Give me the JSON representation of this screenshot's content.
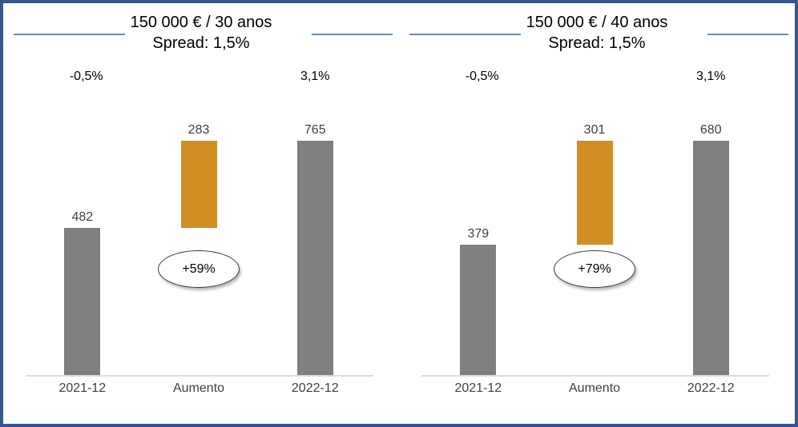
{
  "frame": {
    "background": "#FFFFFF",
    "border_color": "#36578C",
    "title_rule_color": "#6E8CB0"
  },
  "chart_data": [
    {
      "type": "bar",
      "subtype": "waterfall",
      "title": "150 000 € / 30 anos",
      "subtitle": "Spread:  1,5%",
      "categories": [
        "2021-12",
        "Aumento",
        "2022-12"
      ],
      "values": [
        482,
        283,
        765
      ],
      "bar_roles": [
        "base",
        "increase",
        "base"
      ],
      "data_labels": [
        "482",
        "283",
        "765"
      ],
      "annotations": {
        "rate_over_2021": "-0,5%",
        "rate_over_2022": "3,1%",
        "increase_badge": "+59%"
      },
      "colors": {
        "base_bar": "#7F7F7F",
        "increase_bar": "#D18E21",
        "value_label": "#404040",
        "axis_line": "#DCDCDC"
      },
      "ylim": [
        0,
        765
      ],
      "grid": false,
      "legend": false
    },
    {
      "type": "bar",
      "subtype": "waterfall",
      "title": "150 000 € / 40 anos",
      "subtitle": "Spread:  1,5%",
      "categories": [
        "2021-12",
        "Aumento",
        "2022-12"
      ],
      "values": [
        379,
        301,
        680
      ],
      "bar_roles": [
        "base",
        "increase",
        "base"
      ],
      "data_labels": [
        "379",
        "301",
        "680"
      ],
      "annotations": {
        "rate_over_2021": "-0,5%",
        "rate_over_2022": "3,1%",
        "increase_badge": "+79%"
      },
      "colors": {
        "base_bar": "#7F7F7F",
        "increase_bar": "#D18E21",
        "value_label": "#404040",
        "axis_line": "#DCDCDC"
      },
      "ylim": [
        0,
        680
      ],
      "grid": false,
      "legend": false
    }
  ]
}
